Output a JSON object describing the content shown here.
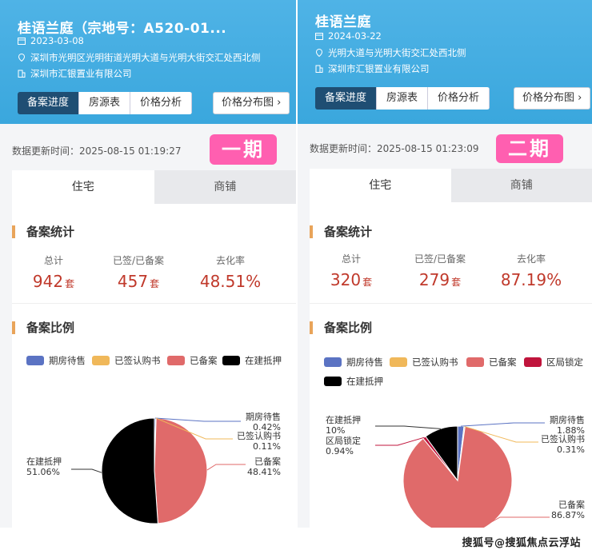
{
  "colors": {
    "accent_header": "#3aa7dd",
    "active_tab": "#1f4e73",
    "phase_badge": "#ff5fb0",
    "stat_value": "#c0392b",
    "section_bar": "#e9a45a",
    "series_pending": "#5b73c3",
    "series_signed": "#f0b85a",
    "series_filed": "#e06a6a",
    "series_locked": "#c0143c",
    "series_mortgage": "#000000"
  },
  "panels": [
    {
      "title": "桂语兰庭（宗地号：A520-01...",
      "date": "2023-03-08",
      "address": "深圳市光明区光明街道光明大道与光明大街交汇处西北侧",
      "developer": "深圳市汇银置业有限公司",
      "tabs": [
        "备案进度",
        "房源表",
        "价格分析"
      ],
      "dist_button": "价格分布图",
      "update_label": "数据更新时间：",
      "update_time": "2025-08-15 01:19:27",
      "phase": "一期",
      "subtabs": [
        "住宅",
        "商铺"
      ],
      "stats_title": "备案统计",
      "stats": [
        {
          "label": "总计",
          "value": "942",
          "unit": "套"
        },
        {
          "label": "已签/已备案",
          "value": "457",
          "unit": "套"
        },
        {
          "label": "去化率",
          "value": "48.51%",
          "unit": ""
        }
      ],
      "ratio_title": "备案比例",
      "legend": [
        "期房待售",
        "已签认购书",
        "已备案",
        "在建抵押"
      ],
      "pie_labels": [
        {
          "name": "期房待售",
          "pct": "0.42%"
        },
        {
          "name": "已签认购书",
          "pct": "0.11%"
        },
        {
          "name": "已备案",
          "pct": "48.41%"
        },
        {
          "name": "在建抵押",
          "pct": "51.06%"
        }
      ]
    },
    {
      "title": "桂语兰庭",
      "date": "2024-03-22",
      "address": "光明大道与光明大街交汇处西北侧",
      "developer": "深圳市汇银置业有限公司",
      "tabs": [
        "备案进度",
        "房源表",
        "价格分析"
      ],
      "dist_button": "价格分布图",
      "update_label": "数据更新时间：",
      "update_time": "2025-08-15 01:23:09",
      "phase": "二期",
      "subtabs": [
        "住宅",
        "商铺"
      ],
      "stats_title": "备案统计",
      "stats": [
        {
          "label": "总计",
          "value": "320",
          "unit": "套"
        },
        {
          "label": "已签/已备案",
          "value": "279",
          "unit": "套"
        },
        {
          "label": "去化率",
          "value": "87.19%",
          "unit": ""
        }
      ],
      "ratio_title": "备案比例",
      "legend": [
        "期房待售",
        "已签认购书",
        "已备案",
        "区局锁定",
        "在建抵押"
      ],
      "pie_labels": [
        {
          "name": "在建抵押",
          "pct": "10%"
        },
        {
          "name": "区局锁定",
          "pct": "0.94%"
        },
        {
          "name": "期房待售",
          "pct": "1.88%"
        },
        {
          "name": "已签认购书",
          "pct": "0.31%"
        },
        {
          "name": "已备案",
          "pct": "86.87%"
        }
      ]
    }
  ],
  "chart_data": [
    {
      "type": "pie",
      "title": "",
      "series": [
        {
          "name": "期房待售",
          "value": 0.42
        },
        {
          "name": "已签认购书",
          "value": 0.11
        },
        {
          "name": "已备案",
          "value": 48.41
        },
        {
          "name": "在建抵押",
          "value": 51.06
        }
      ],
      "legend_position": "top"
    },
    {
      "type": "pie",
      "title": "",
      "series": [
        {
          "name": "期房待售",
          "value": 1.88
        },
        {
          "name": "已签认购书",
          "value": 0.31
        },
        {
          "name": "已备案",
          "value": 86.87
        },
        {
          "name": "区局锁定",
          "value": 0.94
        },
        {
          "name": "在建抵押",
          "value": 10
        }
      ],
      "legend_position": "top"
    }
  ],
  "watermark": "搜狐号@搜狐焦点云浮站"
}
